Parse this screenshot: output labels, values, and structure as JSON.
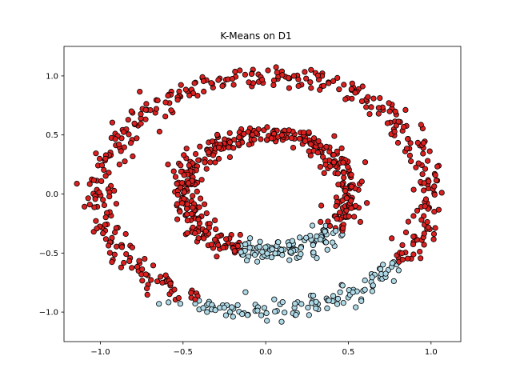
{
  "chart_data": {
    "type": "scatter",
    "title": "K-Means on D1",
    "xlabel": "",
    "ylabel": "",
    "xlim": [
      -1.22,
      1.18
    ],
    "ylim": [
      -1.25,
      1.25
    ],
    "xticks": [
      -1.0,
      -0.5,
      0.0,
      0.5,
      1.0
    ],
    "xtick_labels": [
      "−1.0",
      "−0.5",
      "0.0",
      "0.5",
      "1.0"
    ],
    "yticks": [
      -1.0,
      -0.5,
      0.0,
      0.5,
      1.0
    ],
    "ytick_labels": [
      "−1.0",
      "−0.5",
      "0.0",
      "0.5",
      "1.0"
    ],
    "grid": false,
    "legend": "none",
    "clusters": [
      {
        "color": "#dc2020",
        "edge": "#000000",
        "description": "outer ring upper-left arc and inner ring upper-left arc"
      },
      {
        "color": "#add8e6",
        "edge": "#000000",
        "description": "outer ring lower-right arc and inner ring lower-right arc"
      }
    ],
    "rings": [
      {
        "radius": 1.0,
        "noise": 0.05,
        "count": 500
      },
      {
        "radius": 0.5,
        "noise": 0.05,
        "count": 500
      }
    ],
    "boundary": {
      "cluster0_if": "y > x*0.55 + 0.15 (approx split line through origin region)"
    },
    "point_samples_per_ring": 500
  }
}
